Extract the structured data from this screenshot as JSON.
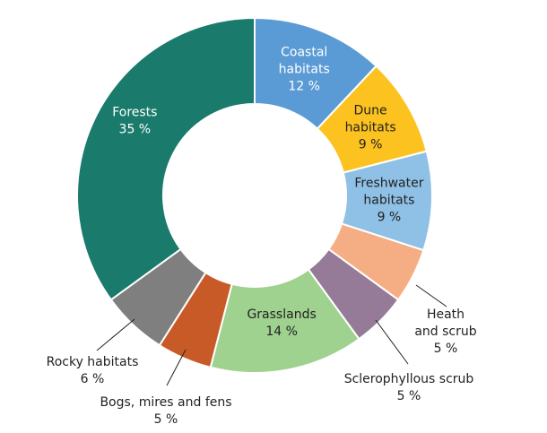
{
  "chart_data": {
    "type": "pie",
    "variant": "donut",
    "title": "",
    "start_angle_deg": 0,
    "direction": "clockwise",
    "slices": [
      {
        "name": "Coastal habitats",
        "label_lines": [
          "Coastal",
          "habitats"
        ],
        "value_label": "12 %",
        "value": 12,
        "color": "#5b9bd5",
        "label_placement": "inside",
        "text_color": "#ffffff"
      },
      {
        "name": "Dune habitats",
        "label_lines": [
          "Dune",
          "habitats"
        ],
        "value_label": "9 %",
        "value": 9,
        "color": "#fcc21f",
        "label_placement": "inside",
        "text_color": "#222222"
      },
      {
        "name": "Freshwater habitats",
        "label_lines": [
          "Freshwater",
          "habitats"
        ],
        "value_label": "9 %",
        "value": 9,
        "color": "#8fc0e6",
        "label_placement": "inside",
        "text_color": "#222222"
      },
      {
        "name": "Heath and scrub",
        "label_lines": [
          "Heath",
          "and scrub"
        ],
        "value_label": "5 %",
        "value": 5,
        "color": "#f5ae83",
        "label_placement": "outside",
        "text_color": "#222222"
      },
      {
        "name": "Sclerophyllous scrub",
        "label_lines": [
          "Sclerophyllous scrub"
        ],
        "value_label": "5 %",
        "value": 5,
        "color": "#957b97",
        "label_placement": "outside",
        "text_color": "#222222"
      },
      {
        "name": "Grasslands",
        "label_lines": [
          "Grasslands"
        ],
        "value_label": "14 %",
        "value": 14,
        "color": "#9fd18f",
        "label_placement": "inside",
        "text_color": "#222222"
      },
      {
        "name": "Bogs, mires and fens",
        "label_lines": [
          "Bogs, mires and fens"
        ],
        "value_label": "5 %",
        "value": 5,
        "color": "#c85a28",
        "label_placement": "outside",
        "text_color": "#222222"
      },
      {
        "name": "Rocky habitats",
        "label_lines": [
          "Rocky habitats"
        ],
        "value_label": "6 %",
        "value": 6,
        "color": "#7f7f7f",
        "label_placement": "outside",
        "text_color": "#222222"
      },
      {
        "name": "Forests",
        "label_lines": [
          "Forests"
        ],
        "value_label": "35 %",
        "value": 35,
        "color": "#1a7b6c",
        "label_placement": "inside",
        "text_color": "#ffffff"
      }
    ]
  }
}
